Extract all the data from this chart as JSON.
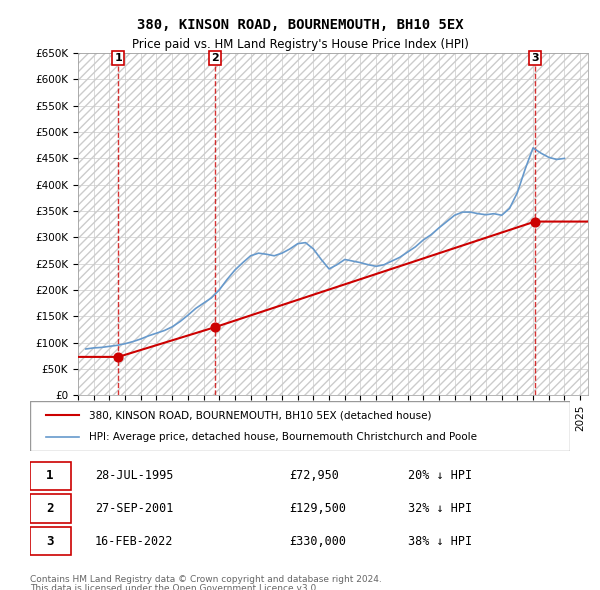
{
  "title": "380, KINSON ROAD, BOURNEMOUTH, BH10 5EX",
  "subtitle": "Price paid vs. HM Land Registry's House Price Index (HPI)",
  "ylabel_ticks": [
    "£0",
    "£50K",
    "£100K",
    "£150K",
    "£200K",
    "£250K",
    "£300K",
    "£350K",
    "£400K",
    "£450K",
    "£500K",
    "£550K",
    "£600K",
    "£650K"
  ],
  "ytick_values": [
    0,
    50000,
    100000,
    150000,
    200000,
    250000,
    300000,
    350000,
    400000,
    450000,
    500000,
    550000,
    600000,
    650000
  ],
  "ylim": [
    0,
    650000
  ],
  "xlim_start": 1993.0,
  "xlim_end": 2025.5,
  "hpi_years": [
    1993.5,
    1994.0,
    1994.5,
    1995.0,
    1995.5,
    1996.0,
    1996.5,
    1997.0,
    1997.5,
    1998.0,
    1998.5,
    1999.0,
    1999.5,
    2000.0,
    2000.5,
    2001.0,
    2001.5,
    2002.0,
    2002.5,
    2003.0,
    2003.5,
    2004.0,
    2004.5,
    2005.0,
    2005.5,
    2006.0,
    2006.5,
    2007.0,
    2007.5,
    2008.0,
    2008.5,
    2009.0,
    2009.5,
    2010.0,
    2010.5,
    2011.0,
    2011.5,
    2012.0,
    2012.5,
    2013.0,
    2013.5,
    2014.0,
    2014.5,
    2015.0,
    2015.5,
    2016.0,
    2016.5,
    2017.0,
    2017.5,
    2018.0,
    2018.5,
    2019.0,
    2019.5,
    2020.0,
    2020.5,
    2021.0,
    2021.5,
    2022.0,
    2022.5,
    2023.0,
    2023.5,
    2024.0
  ],
  "hpi_values": [
    88000,
    90000,
    91000,
    93000,
    95000,
    98000,
    102000,
    107000,
    113000,
    118000,
    123000,
    130000,
    140000,
    152000,
    165000,
    175000,
    185000,
    200000,
    220000,
    238000,
    252000,
    265000,
    270000,
    268000,
    265000,
    270000,
    278000,
    288000,
    290000,
    278000,
    258000,
    240000,
    248000,
    258000,
    255000,
    252000,
    248000,
    245000,
    248000,
    255000,
    262000,
    272000,
    282000,
    295000,
    305000,
    318000,
    330000,
    342000,
    348000,
    348000,
    345000,
    343000,
    345000,
    342000,
    355000,
    385000,
    430000,
    470000,
    460000,
    452000,
    448000,
    450000
  ],
  "sale_years": [
    1995.57,
    2001.74,
    2022.12
  ],
  "sale_prices": [
    72950,
    129500,
    330000
  ],
  "sale_labels": [
    "1",
    "2",
    "3"
  ],
  "transactions": [
    {
      "num": "1",
      "date": "28-JUL-1995",
      "price": "£72,950",
      "hpi_note": "20% ↓ HPI"
    },
    {
      "num": "2",
      "date": "27-SEP-2001",
      "price": "£129,500",
      "hpi_note": "32% ↓ HPI"
    },
    {
      "num": "3",
      "date": "16-FEB-2022",
      "price": "£330,000",
      "hpi_note": "38% ↓ HPI"
    }
  ],
  "legend_line1": "380, KINSON ROAD, BOURNEMOUTH, BH10 5EX (detached house)",
  "legend_line2": "HPI: Average price, detached house, Bournemouth Christchurch and Poole",
  "footnote1": "Contains HM Land Registry data © Crown copyright and database right 2024.",
  "footnote2": "This data is licensed under the Open Government Licence v3.0.",
  "red_color": "#cc0000",
  "blue_color": "#6699cc",
  "bg_hatch_color": "#dddddd",
  "grid_color": "#cccccc",
  "sale_marker_color": "#cc0000",
  "dashed_line_color": "#cc0000"
}
